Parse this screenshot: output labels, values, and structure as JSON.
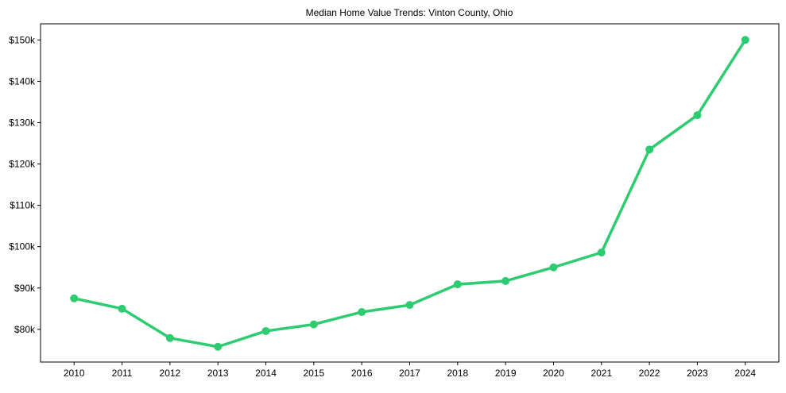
{
  "chart_data": {
    "type": "line",
    "title": "Median Home Value Trends: Vinton County, Ohio",
    "xlabel": "",
    "ylabel": "",
    "x": [
      2010,
      2011,
      2012,
      2013,
      2014,
      2015,
      2016,
      2017,
      2018,
      2019,
      2020,
      2021,
      2022,
      2023,
      2024
    ],
    "series": [
      {
        "name": "Median Home Value",
        "color": "#2ecc71",
        "values": [
          87500,
          85000,
          77900,
          75800,
          79600,
          81200,
          84200,
          85900,
          90900,
          91700,
          95000,
          98600,
          123500,
          131800,
          150000
        ]
      }
    ],
    "yticks": [
      80000,
      90000,
      100000,
      110000,
      120000,
      130000,
      140000,
      150000
    ],
    "ytick_labels": [
      "$80k",
      "$90k",
      "$100k",
      "$110k",
      "$120k",
      "$130k",
      "$140k",
      "$150k"
    ],
    "xtick_labels": [
      "2010",
      "2011",
      "2012",
      "2013",
      "2014",
      "2015",
      "2016",
      "2017",
      "2018",
      "2019",
      "2020",
      "2021",
      "2022",
      "2023",
      "2024"
    ],
    "ylim": [
      72100,
      153900
    ],
    "xlim": [
      2009.3,
      2024.7
    ],
    "grid": false,
    "legend": "none"
  }
}
